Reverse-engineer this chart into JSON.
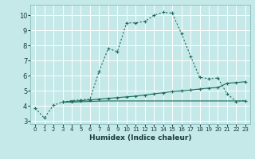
{
  "xlabel": "Humidex (Indice chaleur)",
  "background_color": "#c5e8e8",
  "grid_color": "#b0d8d8",
  "line_color": "#1a6b5a",
  "xlim": [
    -0.5,
    23.5
  ],
  "ylim": [
    2.8,
    10.7
  ],
  "xticks": [
    0,
    1,
    2,
    3,
    4,
    5,
    6,
    7,
    8,
    9,
    10,
    11,
    12,
    13,
    14,
    15,
    16,
    17,
    18,
    19,
    20,
    21,
    22,
    23
  ],
  "yticks": [
    3,
    4,
    5,
    6,
    7,
    8,
    9,
    10
  ],
  "series1_x": [
    0,
    1,
    2,
    3,
    4,
    5,
    6,
    7,
    8,
    9,
    10,
    11,
    12,
    13,
    14,
    15,
    16,
    17,
    18,
    19,
    20,
    21,
    22,
    23
  ],
  "series1_y": [
    3.85,
    3.2,
    4.05,
    4.25,
    4.35,
    4.4,
    4.45,
    6.3,
    7.8,
    7.6,
    9.5,
    9.5,
    9.6,
    10.0,
    10.2,
    10.15,
    8.8,
    7.3,
    5.9,
    5.8,
    5.85,
    4.8,
    4.3,
    4.35
  ],
  "series2_x": [
    3,
    4,
    5,
    6,
    7,
    8,
    9,
    10,
    11,
    12,
    13,
    14,
    15,
    16,
    17,
    18,
    19,
    20,
    21,
    22,
    23
  ],
  "series2_y": [
    4.25,
    4.3,
    4.35,
    4.4,
    4.45,
    4.5,
    4.55,
    4.6,
    4.65,
    4.72,
    4.8,
    4.87,
    4.95,
    5.0,
    5.05,
    5.12,
    5.18,
    5.22,
    5.5,
    5.55,
    5.6
  ],
  "series3_x": [
    3,
    4,
    5,
    6,
    7,
    8,
    9,
    10,
    11,
    12,
    13,
    14,
    15,
    16,
    17,
    18,
    19,
    20,
    21,
    22,
    23
  ],
  "series3_y": [
    4.25,
    4.25,
    4.28,
    4.3,
    4.32,
    4.33,
    4.33,
    4.33,
    4.33,
    4.33,
    4.33,
    4.33,
    4.33,
    4.33,
    4.33,
    4.33,
    4.33,
    4.33,
    4.33,
    4.33,
    4.33
  ]
}
